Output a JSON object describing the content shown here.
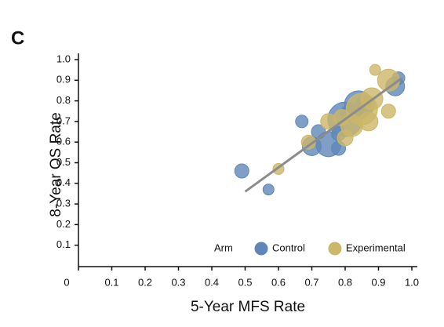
{
  "chart_data": {
    "type": "scatter",
    "title": "C",
    "x_label": "5-Year MFS Rate",
    "y_label": "8-Year OS Rate",
    "xlim": [
      0,
      1
    ],
    "ylim": [
      0,
      1
    ],
    "xticks": [
      0,
      0.1,
      0.2,
      0.3,
      0.4,
      0.5,
      0.6,
      0.7,
      0.8,
      0.9,
      {
        "value": 1,
        "label": "1.0"
      }
    ],
    "yticks": [
      0.1,
      0.2,
      0.3,
      0.4,
      0.5,
      0.6,
      0.7,
      0.8,
      0.9,
      {
        "value": 1,
        "label": "1.0"
      }
    ],
    "legend_title": "Arm",
    "legend_position": "lower right",
    "series": [
      {
        "name": "Control",
        "color": "#6f9fd8",
        "x": [
          0.49,
          0.57,
          0.67,
          0.72,
          0.7,
          0.75,
          0.78,
          0.78,
          0.8,
          0.81,
          0.84,
          0.86,
          0.95,
          0.96
        ],
        "values": [
          0.46,
          0.37,
          0.7,
          0.65,
          0.58,
          0.59,
          0.57,
          0.64,
          0.71,
          0.74,
          0.78,
          0.78,
          0.87,
          0.91
        ],
        "sizes": [
          9,
          7,
          8,
          9,
          12,
          16,
          9,
          9,
          22,
          10,
          18,
          12,
          12,
          8
        ]
      },
      {
        "name": "Experimental",
        "color": "#f0d77a",
        "x": [
          0.6,
          0.69,
          0.75,
          0.79,
          0.8,
          0.82,
          0.85,
          0.87,
          0.88,
          0.89,
          0.93,
          0.93
        ],
        "values": [
          0.47,
          0.6,
          0.7,
          0.72,
          0.62,
          0.68,
          0.76,
          0.7,
          0.81,
          0.95,
          0.9,
          0.75
        ],
        "sizes": [
          7,
          9,
          10,
          10,
          10,
          14,
          20,
          12,
          14,
          7,
          14,
          9
        ]
      }
    ],
    "trend_line": {
      "color": "#8c8c8c",
      "x": [
        0.5,
        0.97
      ],
      "values": [
        0.36,
        0.91
      ]
    }
  }
}
